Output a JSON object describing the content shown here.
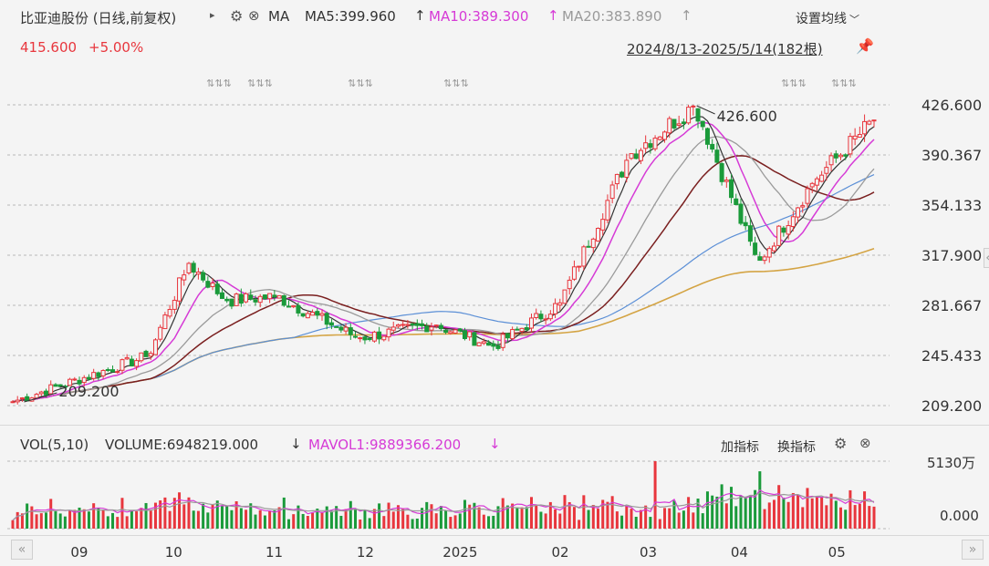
{
  "header": {
    "stock_title": "比亚迪股份 (日线,前复权)",
    "ma_label": "MA",
    "ma5": "MA5:399.960",
    "ma10": "MA10:389.300",
    "ma20": "MA20:383.890",
    "settings": "设置均线",
    "last_price": "415.600",
    "change_pct": "+5.00%",
    "range": "2024/8/13-2025/5/14(182根)"
  },
  "volume_panel": {
    "label": "VOL(5,10)",
    "volume": "VOLUME:6948219.000",
    "mavol": "MAVOL1:9889366.200",
    "add_indicator": "加指标",
    "switch_indicator": "换指标",
    "axis_top": "5130万",
    "axis_bottom": "0.000"
  },
  "x_axis_labels": [
    "09",
    "10",
    "11",
    "12",
    "2025",
    "02",
    "03",
    "04",
    "05"
  ],
  "colors": {
    "up": "#e8363d",
    "down": "#1a9a3a",
    "ma5": "#333333",
    "ma10": "#d63ad6",
    "ma20": "#9a9a9a",
    "ma30": "#7a1f1f",
    "ma60": "#5b8fd6",
    "ma120": "#d4a444"
  },
  "chart_data": {
    "type": "candlestick",
    "y_ticks": [
      "426.600",
      "390.367",
      "354.133",
      "317.900",
      "281.667",
      "245.433",
      "209.200"
    ],
    "ylim": [
      209.2,
      426.6
    ],
    "high_annotation": "426.600",
    "low_annotation": "209.200",
    "n_bars": 182,
    "key_price_points": [
      {
        "date": "2024-08-13",
        "close": 212
      },
      {
        "date": "2024-09-25",
        "close": 245
      },
      {
        "date": "2024-10-08",
        "close": 312
      },
      {
        "date": "2024-10-20",
        "close": 285
      },
      {
        "date": "2024-11-05",
        "close": 288
      },
      {
        "date": "2024-12-01",
        "close": 258
      },
      {
        "date": "2024-12-25",
        "close": 268
      },
      {
        "date": "2025-01-13",
        "close": 252
      },
      {
        "date": "2025-02-03",
        "close": 283
      },
      {
        "date": "2025-02-25",
        "close": 390
      },
      {
        "date": "2025-03-18",
        "close": 426.6
      },
      {
        "date": "2025-04-07",
        "close": 312
      },
      {
        "date": "2025-04-25",
        "close": 372
      },
      {
        "date": "2025-05-14",
        "close": 415.6
      }
    ],
    "moving_averages": {
      "MA5": 399.96,
      "MA10": 389.3,
      "MA20": 383.89
    },
    "volume": {
      "last": 6948219.0,
      "mavol1": 9889366.2,
      "ymax_label": "5130万"
    }
  }
}
